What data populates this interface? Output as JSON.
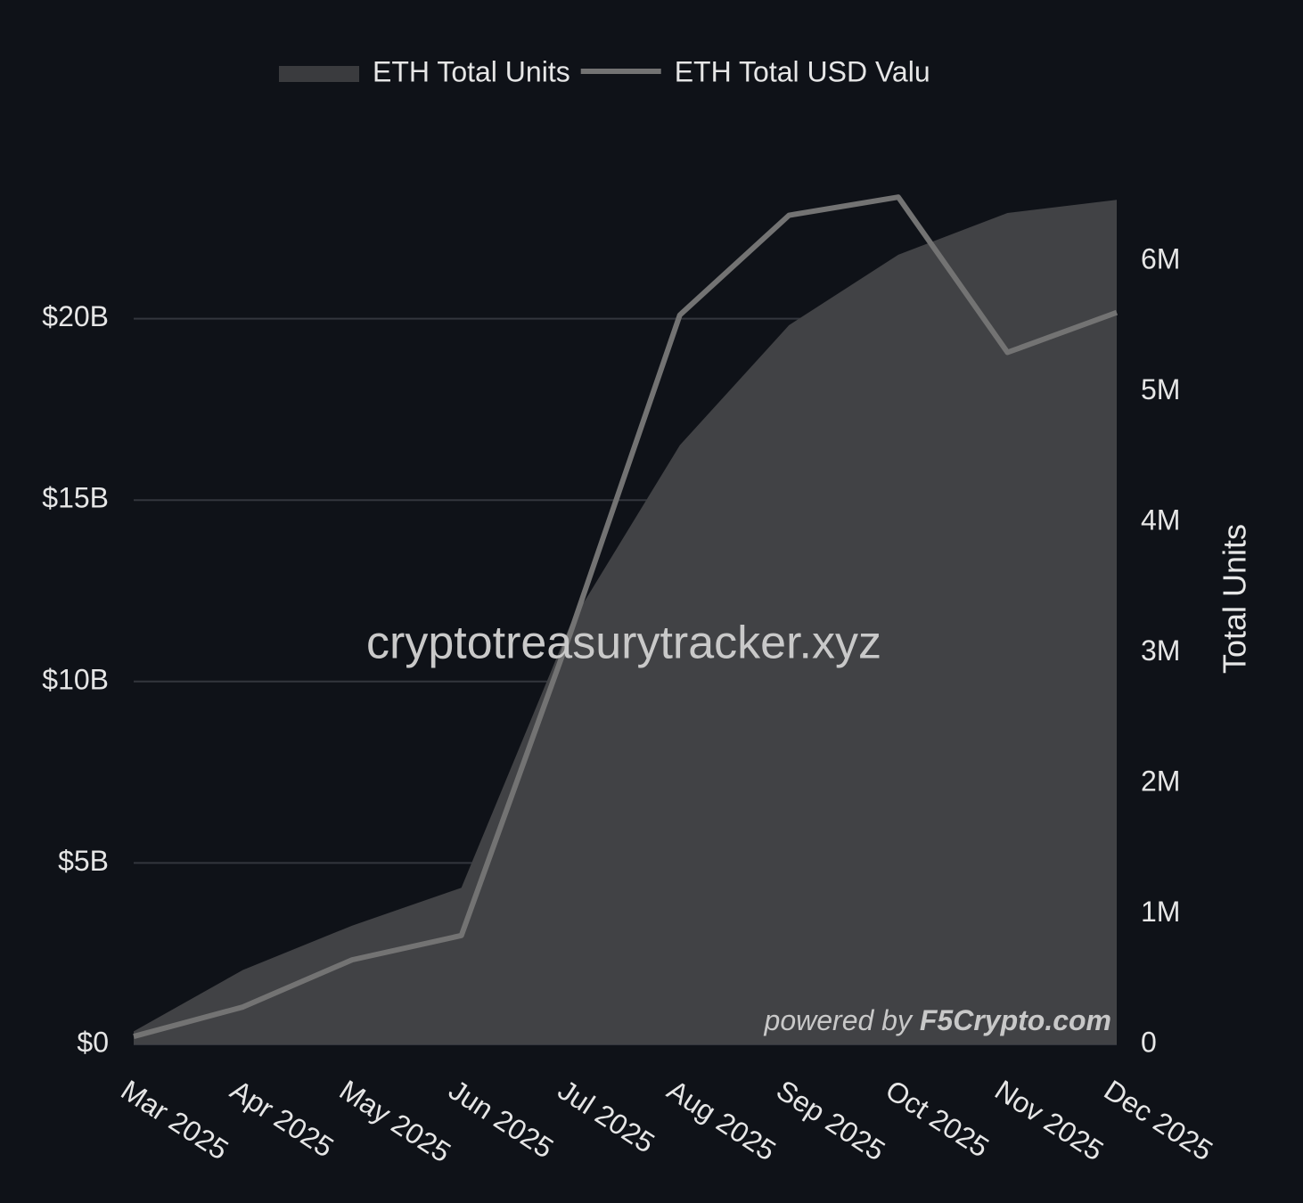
{
  "chart_data": {
    "type": "area-line",
    "categories": [
      "Mar 2025",
      "Apr 2025",
      "May 2025",
      "Jun 2025",
      "Jul 2025",
      "Aug 2025",
      "Sep 2025",
      "Oct 2025",
      "Nov 2025",
      "Dec 2025"
    ],
    "series": [
      {
        "name": "ETH Total Units",
        "type": "area",
        "axis": "y2",
        "color": "#414245",
        "legend_color": "#3a3b3e",
        "values": [
          100000,
          570000,
          910000,
          1200000,
          3220000,
          4590000,
          5510000,
          6050000,
          6370000,
          6470000
        ]
      },
      {
        "name": "ETH Total USD Valu",
        "type": "line",
        "axis": "y",
        "color": "#737373",
        "values": [
          220000000,
          1030000000,
          2330000000,
          3000000000,
          11350000000,
          20100000000,
          22850000000,
          23350000000,
          19070000000,
          20170000000
        ]
      }
    ],
    "ylim": [
      0,
      25000000000
    ],
    "yticks": [
      {
        "value": 0,
        "label": "$0"
      },
      {
        "value": 5000000000,
        "label": "$5B"
      },
      {
        "value": 10000000000,
        "label": "$10B"
      },
      {
        "value": 15000000000,
        "label": "$15B"
      },
      {
        "value": 20000000000,
        "label": "$20B"
      }
    ],
    "y2lim": [
      0,
      6950000
    ],
    "y2ticks": [
      0,
      {
        "value": 1000000,
        "label": "1M"
      },
      {
        "value": 2000000,
        "label": "2M"
      },
      {
        "value": 3000000,
        "label": "3M"
      },
      {
        "value": 4000000,
        "label": "4M"
      },
      {
        "value": 5000000,
        "label": "5M"
      },
      {
        "value": 6000000,
        "label": "6M"
      }
    ],
    "y2label": "Total Units",
    "grid": true,
    "legend": "top",
    "watermark": "cryptotreasurytracker.xyz",
    "credit_prefix": "powered by",
    "credit": "F5Crypto.com"
  }
}
